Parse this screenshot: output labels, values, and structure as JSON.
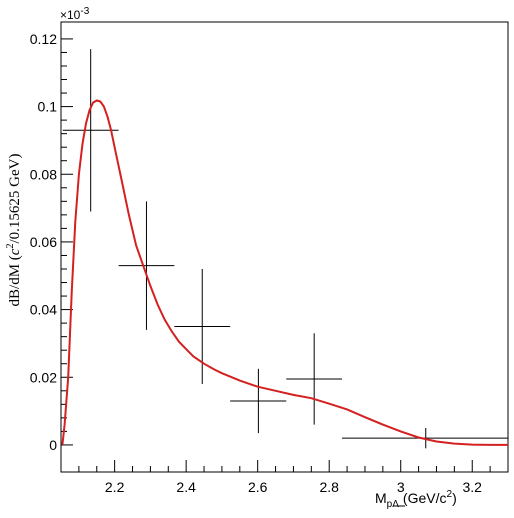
{
  "chart_data": {
    "type": "scatter",
    "title": "",
    "xlabel": "M",
    "xlabel_sub": "pΛ",
    "xlabel_unit": "(GeV/c",
    "xlabel_unit_sup": "2",
    "xlabel_unit_end": ")",
    "ylabel": "dB/dM (",
    "ylabel_c": "c",
    "ylabel_sup": "2",
    "ylabel_end": "/0.15625 GeV)",
    "y_multiplier": "×10",
    "y_multiplier_exp": "-3",
    "xlim": [
      2.05,
      3.3
    ],
    "ylim": [
      -0.008,
      0.125
    ],
    "x_ticks": [
      2.2,
      2.4,
      2.6,
      2.8,
      3.0,
      3.2
    ],
    "x_tick_labels": [
      "2.2",
      "2.4",
      "2.6",
      "2.8",
      "3",
      "3.2"
    ],
    "y_ticks": [
      0,
      0.02,
      0.04,
      0.06,
      0.08,
      0.1,
      0.12
    ],
    "y_tick_labels": [
      "0",
      "0.02",
      "0.04",
      "0.06",
      "0.08",
      "0.1",
      "0.12"
    ],
    "grid": false,
    "data_points": [
      {
        "x": 2.133,
        "xlo": 2.055,
        "xhi": 2.211,
        "y": 0.093,
        "ylo": 0.069,
        "yhi": 0.117
      },
      {
        "x": 2.289,
        "xlo": 2.211,
        "xhi": 2.367,
        "y": 0.053,
        "ylo": 0.034,
        "yhi": 0.072
      },
      {
        "x": 2.445,
        "xlo": 2.367,
        "xhi": 2.523,
        "y": 0.035,
        "ylo": 0.018,
        "yhi": 0.052
      },
      {
        "x": 2.602,
        "xlo": 2.523,
        "xhi": 2.68,
        "y": 0.013,
        "ylo": 0.0035,
        "yhi": 0.0225
      },
      {
        "x": 2.758,
        "xlo": 2.68,
        "xhi": 2.836,
        "y": 0.0195,
        "ylo": 0.006,
        "yhi": 0.033
      },
      {
        "x": 3.07,
        "xlo": 2.836,
        "xhi": 3.3,
        "y": 0.002,
        "ylo": -0.001,
        "yhi": 0.005
      }
    ],
    "curve_color": "#d42020",
    "curve": [
      [
        2.054,
        0.0
      ],
      [
        2.06,
        0.006
      ],
      [
        2.07,
        0.02
      ],
      [
        2.08,
        0.045
      ],
      [
        2.09,
        0.066
      ],
      [
        2.1,
        0.08
      ],
      [
        2.11,
        0.089
      ],
      [
        2.12,
        0.095
      ],
      [
        2.13,
        0.099
      ],
      [
        2.14,
        0.1012
      ],
      [
        2.15,
        0.1018
      ],
      [
        2.16,
        0.1015
      ],
      [
        2.17,
        0.1
      ],
      [
        2.18,
        0.097
      ],
      [
        2.19,
        0.093
      ],
      [
        2.2,
        0.088
      ],
      [
        2.22,
        0.078
      ],
      [
        2.24,
        0.068
      ],
      [
        2.26,
        0.059
      ],
      [
        2.28,
        0.053
      ],
      [
        2.3,
        0.047
      ],
      [
        2.32,
        0.0415
      ],
      [
        2.34,
        0.037
      ],
      [
        2.36,
        0.0335
      ],
      [
        2.38,
        0.0305
      ],
      [
        2.4,
        0.0283
      ],
      [
        2.42,
        0.0262
      ],
      [
        2.45,
        0.024
      ],
      [
        2.48,
        0.0222
      ],
      [
        2.5,
        0.0212
      ],
      [
        2.55,
        0.019
      ],
      [
        2.6,
        0.0172
      ],
      [
        2.65,
        0.016
      ],
      [
        2.7,
        0.0148
      ],
      [
        2.75,
        0.0138
      ],
      [
        2.8,
        0.0122
      ],
      [
        2.85,
        0.0105
      ],
      [
        2.9,
        0.0082
      ],
      [
        2.95,
        0.006
      ],
      [
        3.0,
        0.004
      ],
      [
        3.05,
        0.0022
      ],
      [
        3.1,
        0.001
      ],
      [
        3.15,
        0.0004
      ],
      [
        3.2,
        0.0001
      ],
      [
        3.25,
        0.0
      ],
      [
        3.3,
        0.0
      ]
    ]
  }
}
